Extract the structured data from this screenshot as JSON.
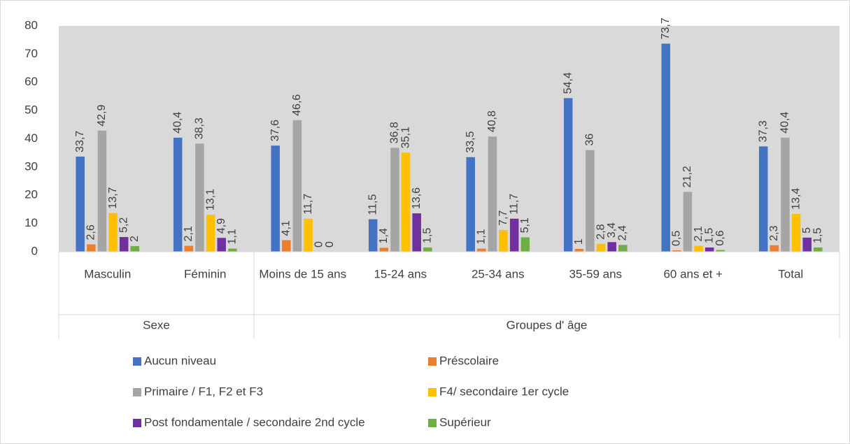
{
  "chart_data": {
    "type": "bar",
    "categories": [
      "Masculin",
      "Féminin",
      "Moins de 15 ans",
      "15-24 ans",
      "25-34 ans",
      "35-59 ans",
      "60 ans et +",
      "Total"
    ],
    "groups": [
      {
        "label": "Sexe",
        "span": 2
      },
      {
        "label": "Groupes d' âge",
        "span": 6
      }
    ],
    "series": [
      {
        "name": "Aucun niveau",
        "color": "#4472c4",
        "values": [
          33.7,
          40.4,
          37.6,
          11.5,
          33.5,
          54.4,
          73.7,
          37.3
        ],
        "value_labels": [
          "33,7",
          "40,4",
          "37,6",
          "11,5",
          "33,5",
          "54,4",
          "73,7",
          "37,3"
        ]
      },
      {
        "name": "Préscolaire",
        "color": "#ed7d31",
        "values": [
          2.6,
          2.1,
          4.1,
          1.4,
          1.1,
          1,
          0.5,
          2.3
        ],
        "value_labels": [
          "2,6",
          "2,1",
          "4,1",
          "1,4",
          "1,1",
          "1",
          "0,5",
          "2,3"
        ]
      },
      {
        "name": "Primaire / F1, F2 et F3",
        "color": "#a5a5a5",
        "values": [
          42.9,
          38.3,
          46.6,
          36.8,
          40.8,
          36,
          21.2,
          40.4
        ],
        "value_labels": [
          "42,9",
          "38,3",
          "46,6",
          "36,8",
          "40,8",
          "36",
          "21,2",
          "40,4"
        ]
      },
      {
        "name": "F4/ secondaire 1er cycle",
        "color": "#ffc000",
        "values": [
          13.7,
          13.1,
          11.7,
          35.1,
          7.7,
          2.8,
          2.1,
          13.4
        ],
        "value_labels": [
          "13,7",
          "13,1",
          "11,7",
          "35,1",
          "7,7",
          "2,8",
          "2,1",
          "13,4"
        ]
      },
      {
        "name": "Post fondamentale / secondaire 2nd cycle",
        "color": "#7030a0",
        "values": [
          5.2,
          4.9,
          0,
          13.6,
          11.7,
          3.4,
          1.5,
          5
        ],
        "value_labels": [
          "5,2",
          "4,9",
          "0",
          "13,6",
          "11,7",
          "3,4",
          "1,5",
          "5"
        ]
      },
      {
        "name": "Supérieur",
        "color": "#70ad47",
        "values": [
          2,
          1.1,
          0,
          1.5,
          5.1,
          2.4,
          0.6,
          1.5
        ],
        "value_labels": [
          "2",
          "1,1",
          "0",
          "1,5",
          "5,1",
          "2,4",
          "0,6",
          "1,5"
        ]
      }
    ],
    "ylim": [
      0,
      80
    ],
    "yticks": [
      0,
      10,
      20,
      30,
      40,
      50,
      60,
      70,
      80
    ],
    "plot_background": "#d9d9d9"
  }
}
